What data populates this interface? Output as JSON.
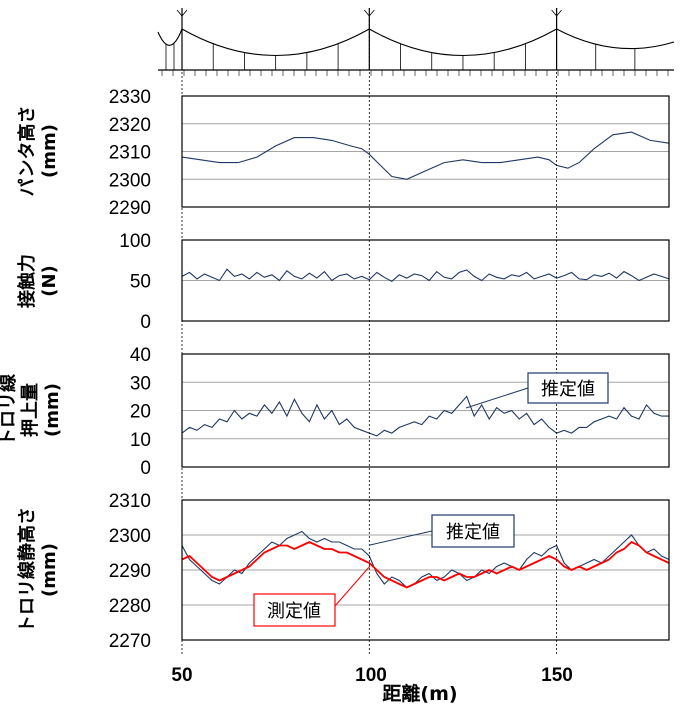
{
  "x_axis": {
    "label": "距離(m)",
    "ticks": [
      "50",
      "100",
      "150"
    ],
    "range": [
      50,
      180
    ]
  },
  "chart_data": [
    {
      "type": "line",
      "ylabel_lines": [
        "パンタ高さ",
        "(mm)"
      ],
      "ylim": [
        2290,
        2330
      ],
      "yticks": [
        2290,
        2300,
        2310,
        2320,
        2330
      ],
      "grid": true,
      "series": [
        {
          "name": "",
          "color": "#1f3864",
          "x": [
            50,
            55,
            60,
            65,
            70,
            75,
            80,
            85,
            90,
            95,
            98,
            100,
            103,
            106,
            110,
            115,
            120,
            125,
            130,
            135,
            140,
            145,
            148,
            150,
            153,
            156,
            160,
            165,
            170,
            175,
            180
          ],
          "y": [
            2308,
            2307,
            2306,
            2306,
            2308,
            2312,
            2315,
            2315,
            2314,
            2312,
            2311,
            2309,
            2305,
            2301,
            2300,
            2303,
            2306,
            2307,
            2306,
            2306,
            2307,
            2308,
            2307,
            2305,
            2304,
            2306,
            2311,
            2316,
            2317,
            2314,
            2313
          ]
        }
      ]
    },
    {
      "type": "line",
      "ylabel_lines": [
        "接触力",
        "(N)"
      ],
      "ylim": [
        0,
        100
      ],
      "yticks": [
        0,
        50,
        100
      ],
      "grid": true,
      "series": [
        {
          "name": "",
          "color": "#1f3864",
          "x": [
            50,
            52,
            54,
            56,
            58,
            60,
            62,
            64,
            66,
            68,
            70,
            72,
            74,
            76,
            78,
            80,
            82,
            84,
            86,
            88,
            90,
            92,
            94,
            96,
            98,
            100,
            102,
            104,
            106,
            108,
            110,
            112,
            114,
            116,
            118,
            120,
            122,
            124,
            126,
            128,
            130,
            132,
            134,
            136,
            138,
            140,
            142,
            144,
            146,
            148,
            150,
            152,
            154,
            156,
            158,
            160,
            162,
            164,
            166,
            168,
            170,
            172,
            174,
            176,
            178,
            180
          ],
          "y": [
            55,
            60,
            52,
            58,
            54,
            50,
            64,
            55,
            58,
            52,
            60,
            54,
            57,
            50,
            62,
            55,
            52,
            59,
            53,
            61,
            50,
            56,
            58,
            52,
            55,
            51,
            60,
            54,
            49,
            57,
            53,
            58,
            56,
            50,
            61,
            54,
            52,
            60,
            63,
            55,
            50,
            58,
            54,
            52,
            57,
            55,
            60,
            52,
            55,
            58,
            53,
            56,
            60,
            52,
            51,
            57,
            55,
            59,
            53,
            61,
            56,
            50,
            54,
            58,
            55,
            52
          ]
        }
      ]
    },
    {
      "type": "line",
      "ylabel_lines": [
        "トロリ線",
        "押上量",
        "(mm)"
      ],
      "ylim": [
        0,
        40
      ],
      "yticks": [
        0,
        10,
        20,
        30,
        40
      ],
      "grid": true,
      "annotations": [
        {
          "text": "推定値"
        }
      ],
      "series": [
        {
          "name": "",
          "color": "#1f3864",
          "x": [
            50,
            52,
            54,
            56,
            58,
            60,
            62,
            64,
            66,
            68,
            70,
            72,
            74,
            76,
            78,
            80,
            82,
            84,
            86,
            88,
            90,
            92,
            94,
            96,
            98,
            100,
            102,
            104,
            106,
            108,
            110,
            112,
            114,
            116,
            118,
            120,
            122,
            124,
            126,
            128,
            130,
            132,
            134,
            136,
            138,
            140,
            142,
            144,
            146,
            148,
            150,
            152,
            154,
            156,
            158,
            160,
            162,
            164,
            166,
            168,
            170,
            172,
            174,
            176,
            178,
            180
          ],
          "y": [
            12,
            14,
            13,
            15,
            14,
            17,
            16,
            20,
            17,
            19,
            18,
            22,
            19,
            23,
            18,
            24,
            19,
            16,
            22,
            17,
            20,
            15,
            17,
            14,
            13,
            12,
            11,
            13,
            12,
            14,
            15,
            16,
            15,
            18,
            17,
            20,
            19,
            22,
            25,
            18,
            22,
            17,
            21,
            19,
            20,
            17,
            19,
            15,
            17,
            14,
            12,
            13,
            12,
            14,
            14,
            16,
            17,
            18,
            17,
            21,
            18,
            17,
            22,
            19,
            18,
            18
          ]
        }
      ]
    },
    {
      "type": "line",
      "ylabel_lines": [
        "トロリ線静高さ",
        "(mm)"
      ],
      "ylim": [
        2270,
        2310
      ],
      "yticks": [
        2270,
        2280,
        2290,
        2300,
        2310
      ],
      "grid": true,
      "annotations": [
        {
          "text": "推定値"
        },
        {
          "text": "測定値"
        }
      ],
      "series": [
        {
          "name": "推定値",
          "color": "#1f3864",
          "x": [
            50,
            52,
            54,
            56,
            58,
            60,
            62,
            64,
            66,
            68,
            70,
            72,
            74,
            76,
            78,
            80,
            82,
            84,
            86,
            88,
            90,
            92,
            94,
            96,
            98,
            100,
            102,
            104,
            106,
            108,
            110,
            112,
            114,
            116,
            118,
            120,
            122,
            124,
            126,
            128,
            130,
            132,
            134,
            136,
            138,
            140,
            142,
            144,
            146,
            148,
            150,
            152,
            154,
            156,
            158,
            160,
            162,
            164,
            166,
            168,
            170,
            172,
            174,
            176,
            178,
            180
          ],
          "y": [
            2297,
            2293,
            2291,
            2289,
            2287,
            2286,
            2288,
            2290,
            2289,
            2292,
            2294,
            2296,
            2298,
            2297,
            2299,
            2300,
            2301,
            2299,
            2298,
            2299,
            2298,
            2298,
            2297,
            2296,
            2296,
            2294,
            2289,
            2286,
            2288,
            2287,
            2285,
            2286,
            2288,
            2289,
            2287,
            2288,
            2290,
            2289,
            2287,
            2288,
            2290,
            2289,
            2291,
            2292,
            2291,
            2290,
            2293,
            2295,
            2294,
            2296,
            2297,
            2292,
            2290,
            2291,
            2292,
            2293,
            2292,
            2294,
            2296,
            2298,
            2300,
            2297,
            2295,
            2296,
            2294,
            2293
          ]
        },
        {
          "name": "測定値",
          "color": "#ff0000",
          "x": [
            50,
            52,
            54,
            56,
            58,
            60,
            62,
            64,
            66,
            68,
            70,
            72,
            74,
            76,
            78,
            80,
            82,
            84,
            86,
            88,
            90,
            92,
            94,
            96,
            98,
            100,
            102,
            104,
            106,
            108,
            110,
            112,
            114,
            116,
            118,
            120,
            122,
            124,
            126,
            128,
            130,
            132,
            134,
            136,
            138,
            140,
            142,
            144,
            146,
            148,
            150,
            152,
            154,
            156,
            158,
            160,
            162,
            164,
            166,
            168,
            170,
            172,
            174,
            176,
            178,
            180
          ],
          "y": [
            2293,
            2294,
            2292,
            2290,
            2288,
            2287,
            2288,
            2289,
            2290,
            2291,
            2293,
            2295,
            2296,
            2297,
            2297,
            2296,
            2297,
            2298,
            2297,
            2296,
            2296,
            2295,
            2295,
            2294,
            2293,
            2292,
            2290,
            2288,
            2287,
            2286,
            2285,
            2286,
            2287,
            2288,
            2288,
            2287,
            2288,
            2289,
            2288,
            2288,
            2289,
            2290,
            2289,
            2290,
            2291,
            2290,
            2291,
            2292,
            2293,
            2294,
            2293,
            2291,
            2290,
            2291,
            2290,
            2291,
            2292,
            2293,
            2295,
            2296,
            2298,
            2297,
            2295,
            2294,
            2293,
            2292
          ]
        }
      ]
    }
  ]
}
